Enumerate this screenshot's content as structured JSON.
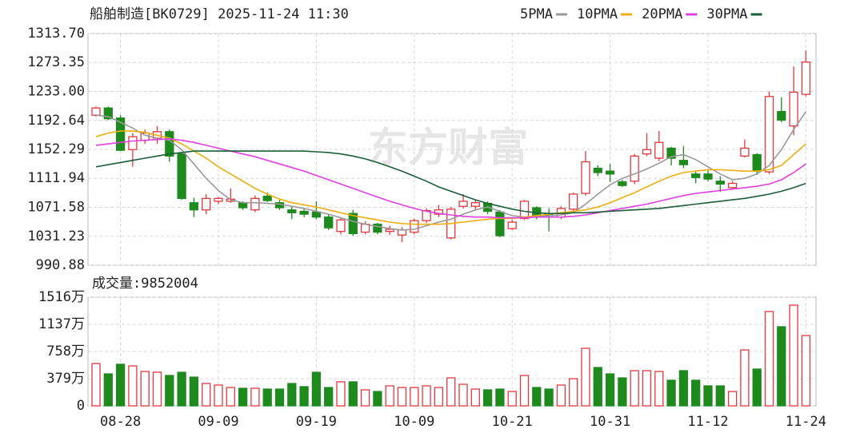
{
  "watermark": "东方财富",
  "chart_data": [
    {
      "type": "candlestick",
      "title": "船舶制造[BK0729] 2025-11-24 11:30",
      "up_color": "#e0383e",
      "down_color": "#1e8a1e",
      "grid": true,
      "ylim": [
        990.88,
        1313.7
      ],
      "yticks": [
        990.88,
        1031.23,
        1071.58,
        1111.94,
        1152.29,
        1192.64,
        {
          "value": 1233,
          "label": "1233.00"
        },
        1273.35,
        {
          "value": 1313.7,
          "label": "1313.70"
        }
      ],
      "open": [
        1200,
        1210,
        1196,
        1152,
        1165,
        1168,
        1177,
        1146,
        1078,
        1068,
        1080,
        1080,
        1078,
        1068,
        1087,
        1078,
        1068,
        1066,
        1065,
        1058,
        1038,
        1063,
        1037,
        1048,
        1038,
        1033,
        1037,
        1053,
        1062,
        1029,
        1073,
        1073,
        1077,
        1065,
        1042,
        1056,
        1071,
        1063,
        1058,
        1069,
        1091,
        1126,
        1122,
        1107,
        1108,
        1146,
        1140,
        1154,
        1137,
        1118,
        1118,
        1108,
        1099,
        1143,
        1145,
        1121,
        1205,
        1185,
        1229
      ],
      "high": [
        1212,
        1212,
        1200,
        1175,
        1180,
        1185,
        1180,
        1148,
        1085,
        1090,
        1086,
        1098,
        1080,
        1088,
        1092,
        1082,
        1072,
        1070,
        1080,
        1062,
        1058,
        1068,
        1052,
        1050,
        1046,
        1044,
        1056,
        1070,
        1075,
        1072,
        1090,
        1082,
        1080,
        1068,
        1054,
        1082,
        1073,
        1070,
        1073,
        1092,
        1150,
        1130,
        1132,
        1110,
        1146,
        1175,
        1178,
        1156,
        1157,
        1123,
        1124,
        1115,
        1108,
        1166,
        1147,
        1233,
        1225,
        1268,
        1290
      ],
      "low": [
        1198,
        1193,
        1150,
        1128,
        1160,
        1160,
        1135,
        1082,
        1058,
        1062,
        1076,
        1078,
        1068,
        1065,
        1079,
        1068,
        1055,
        1058,
        1055,
        1040,
        1034,
        1032,
        1034,
        1034,
        1033,
        1023,
        1034,
        1050,
        1058,
        1027,
        1070,
        1068,
        1062,
        1030,
        1040,
        1054,
        1055,
        1038,
        1055,
        1066,
        1088,
        1115,
        1107,
        1100,
        1104,
        1143,
        1136,
        1130,
        1126,
        1105,
        1108,
        1093,
        1096,
        1141,
        1117,
        1118,
        1190,
        1172,
        1226
      ],
      "close": [
        1210,
        1195,
        1151,
        1170,
        1175,
        1177,
        1143,
        1084,
        1068,
        1084,
        1084,
        1083,
        1071,
        1084,
        1081,
        1071,
        1064,
        1062,
        1058,
        1043,
        1054,
        1035,
        1048,
        1037,
        1041,
        1040,
        1053,
        1067,
        1068,
        1069,
        1080,
        1078,
        1066,
        1032,
        1051,
        1080,
        1058,
        1060,
        1070,
        1090,
        1135,
        1120,
        1118,
        1102,
        1143,
        1152,
        1162,
        1140,
        1131,
        1113,
        1111,
        1104,
        1105,
        1154,
        1122,
        1226,
        1193,
        1232,
        1274
      ],
      "series": [
        {
          "name": "5PMA",
          "color": "#9a9a9a",
          "values": [
            1200,
            1198,
            1190,
            1182,
            1172,
            1168,
            1165,
            1152,
            1132,
            1112,
            1095,
            1082,
            1078,
            1078,
            1077,
            1076,
            1073,
            1070,
            1066,
            1062,
            1057,
            1052,
            1048,
            1045,
            1042,
            1040,
            1041,
            1046,
            1051,
            1055,
            1062,
            1068,
            1072,
            1066,
            1060,
            1058,
            1058,
            1060,
            1061,
            1064,
            1076,
            1090,
            1103,
            1112,
            1118,
            1125,
            1133,
            1142,
            1145,
            1138,
            1128,
            1118,
            1110,
            1112,
            1118,
            1130,
            1152,
            1180,
            1205
          ]
        },
        {
          "name": "10PMA",
          "color": "#eeae10",
          "values": [
            1170,
            1175,
            1178,
            1178,
            1176,
            1172,
            1168,
            1160,
            1150,
            1140,
            1128,
            1118,
            1108,
            1098,
            1090,
            1083,
            1078,
            1075,
            1072,
            1068,
            1064,
            1060,
            1057,
            1054,
            1051,
            1049,
            1048,
            1048,
            1048,
            1049,
            1051,
            1053,
            1055,
            1056,
            1056,
            1058,
            1060,
            1062,
            1064,
            1066,
            1068,
            1072,
            1078,
            1085,
            1092,
            1100,
            1108,
            1115,
            1120,
            1122,
            1124,
            1124,
            1123,
            1122,
            1122,
            1124,
            1130,
            1145,
            1160
          ]
        },
        {
          "name": "20PMA",
          "color": "#e040e0",
          "values": [
            1158,
            1160,
            1162,
            1164,
            1165,
            1166,
            1167,
            1165,
            1162,
            1158,
            1154,
            1150,
            1146,
            1142,
            1137,
            1132,
            1127,
            1122,
            1116,
            1110,
            1104,
            1098,
            1092,
            1086,
            1080,
            1075,
            1070,
            1066,
            1063,
            1061,
            1059,
            1058,
            1058,
            1057,
            1057,
            1057,
            1058,
            1058,
            1058,
            1059,
            1061,
            1064,
            1067,
            1070,
            1073,
            1076,
            1080,
            1084,
            1088,
            1091,
            1093,
            1095,
            1097,
            1099,
            1101,
            1104,
            1110,
            1120,
            1132
          ]
        },
        {
          "name": "30PMA",
          "color": "#1a5e3a",
          "values": [
            1128,
            1131,
            1134,
            1137,
            1140,
            1143,
            1146,
            1148,
            1150,
            1150,
            1150,
            1150,
            1150,
            1150,
            1150,
            1150,
            1150,
            1150,
            1149,
            1148,
            1146,
            1143,
            1139,
            1134,
            1128,
            1122,
            1115,
            1108,
            1100,
            1094,
            1088,
            1082,
            1077,
            1073,
            1069,
            1066,
            1064,
            1063,
            1063,
            1064,
            1064,
            1065,
            1066,
            1067,
            1068,
            1069,
            1070,
            1072,
            1074,
            1076,
            1078,
            1080,
            1082,
            1084,
            1087,
            1090,
            1094,
            1099,
            1105
          ]
        }
      ]
    },
    {
      "type": "bar",
      "title": "成交量:9852004",
      "grid": true,
      "ylim": [
        0,
        1516
      ],
      "yticks": [
        0,
        {
          "value": 379,
          "label": "379万"
        },
        {
          "value": 758,
          "label": "758万"
        },
        {
          "value": 1137,
          "label": "1137万"
        },
        {
          "value": 1516,
          "label": "1516万"
        }
      ],
      "categories": [
        null,
        null,
        "08-28",
        null,
        null,
        null,
        null,
        null,
        null,
        null,
        "09-09",
        null,
        null,
        null,
        null,
        null,
        null,
        null,
        "09-19",
        null,
        null,
        null,
        null,
        null,
        null,
        null,
        "10-09",
        null,
        null,
        null,
        null,
        null,
        null,
        null,
        "10-21",
        null,
        null,
        null,
        null,
        null,
        null,
        null,
        "10-31",
        null,
        null,
        null,
        null,
        null,
        null,
        null,
        "11-12",
        null,
        null,
        null,
        null,
        null,
        null,
        null,
        "11-24"
      ],
      "values": [
        590,
        446,
        580,
        557,
        480,
        470,
        424,
        468,
        401,
        312,
        290,
        256,
        245,
        245,
        234,
        234,
        312,
        268,
        468,
        256,
        335,
        335,
        223,
        200,
        279,
        256,
        256,
        279,
        256,
        390,
        301,
        234,
        223,
        234,
        200,
        424,
        256,
        234,
        290,
        379,
        803,
        535,
        446,
        390,
        491,
        491,
        480,
        357,
        491,
        357,
        279,
        279,
        200,
        780,
        513,
        1316,
        1104,
        1405,
        981
      ]
    }
  ]
}
